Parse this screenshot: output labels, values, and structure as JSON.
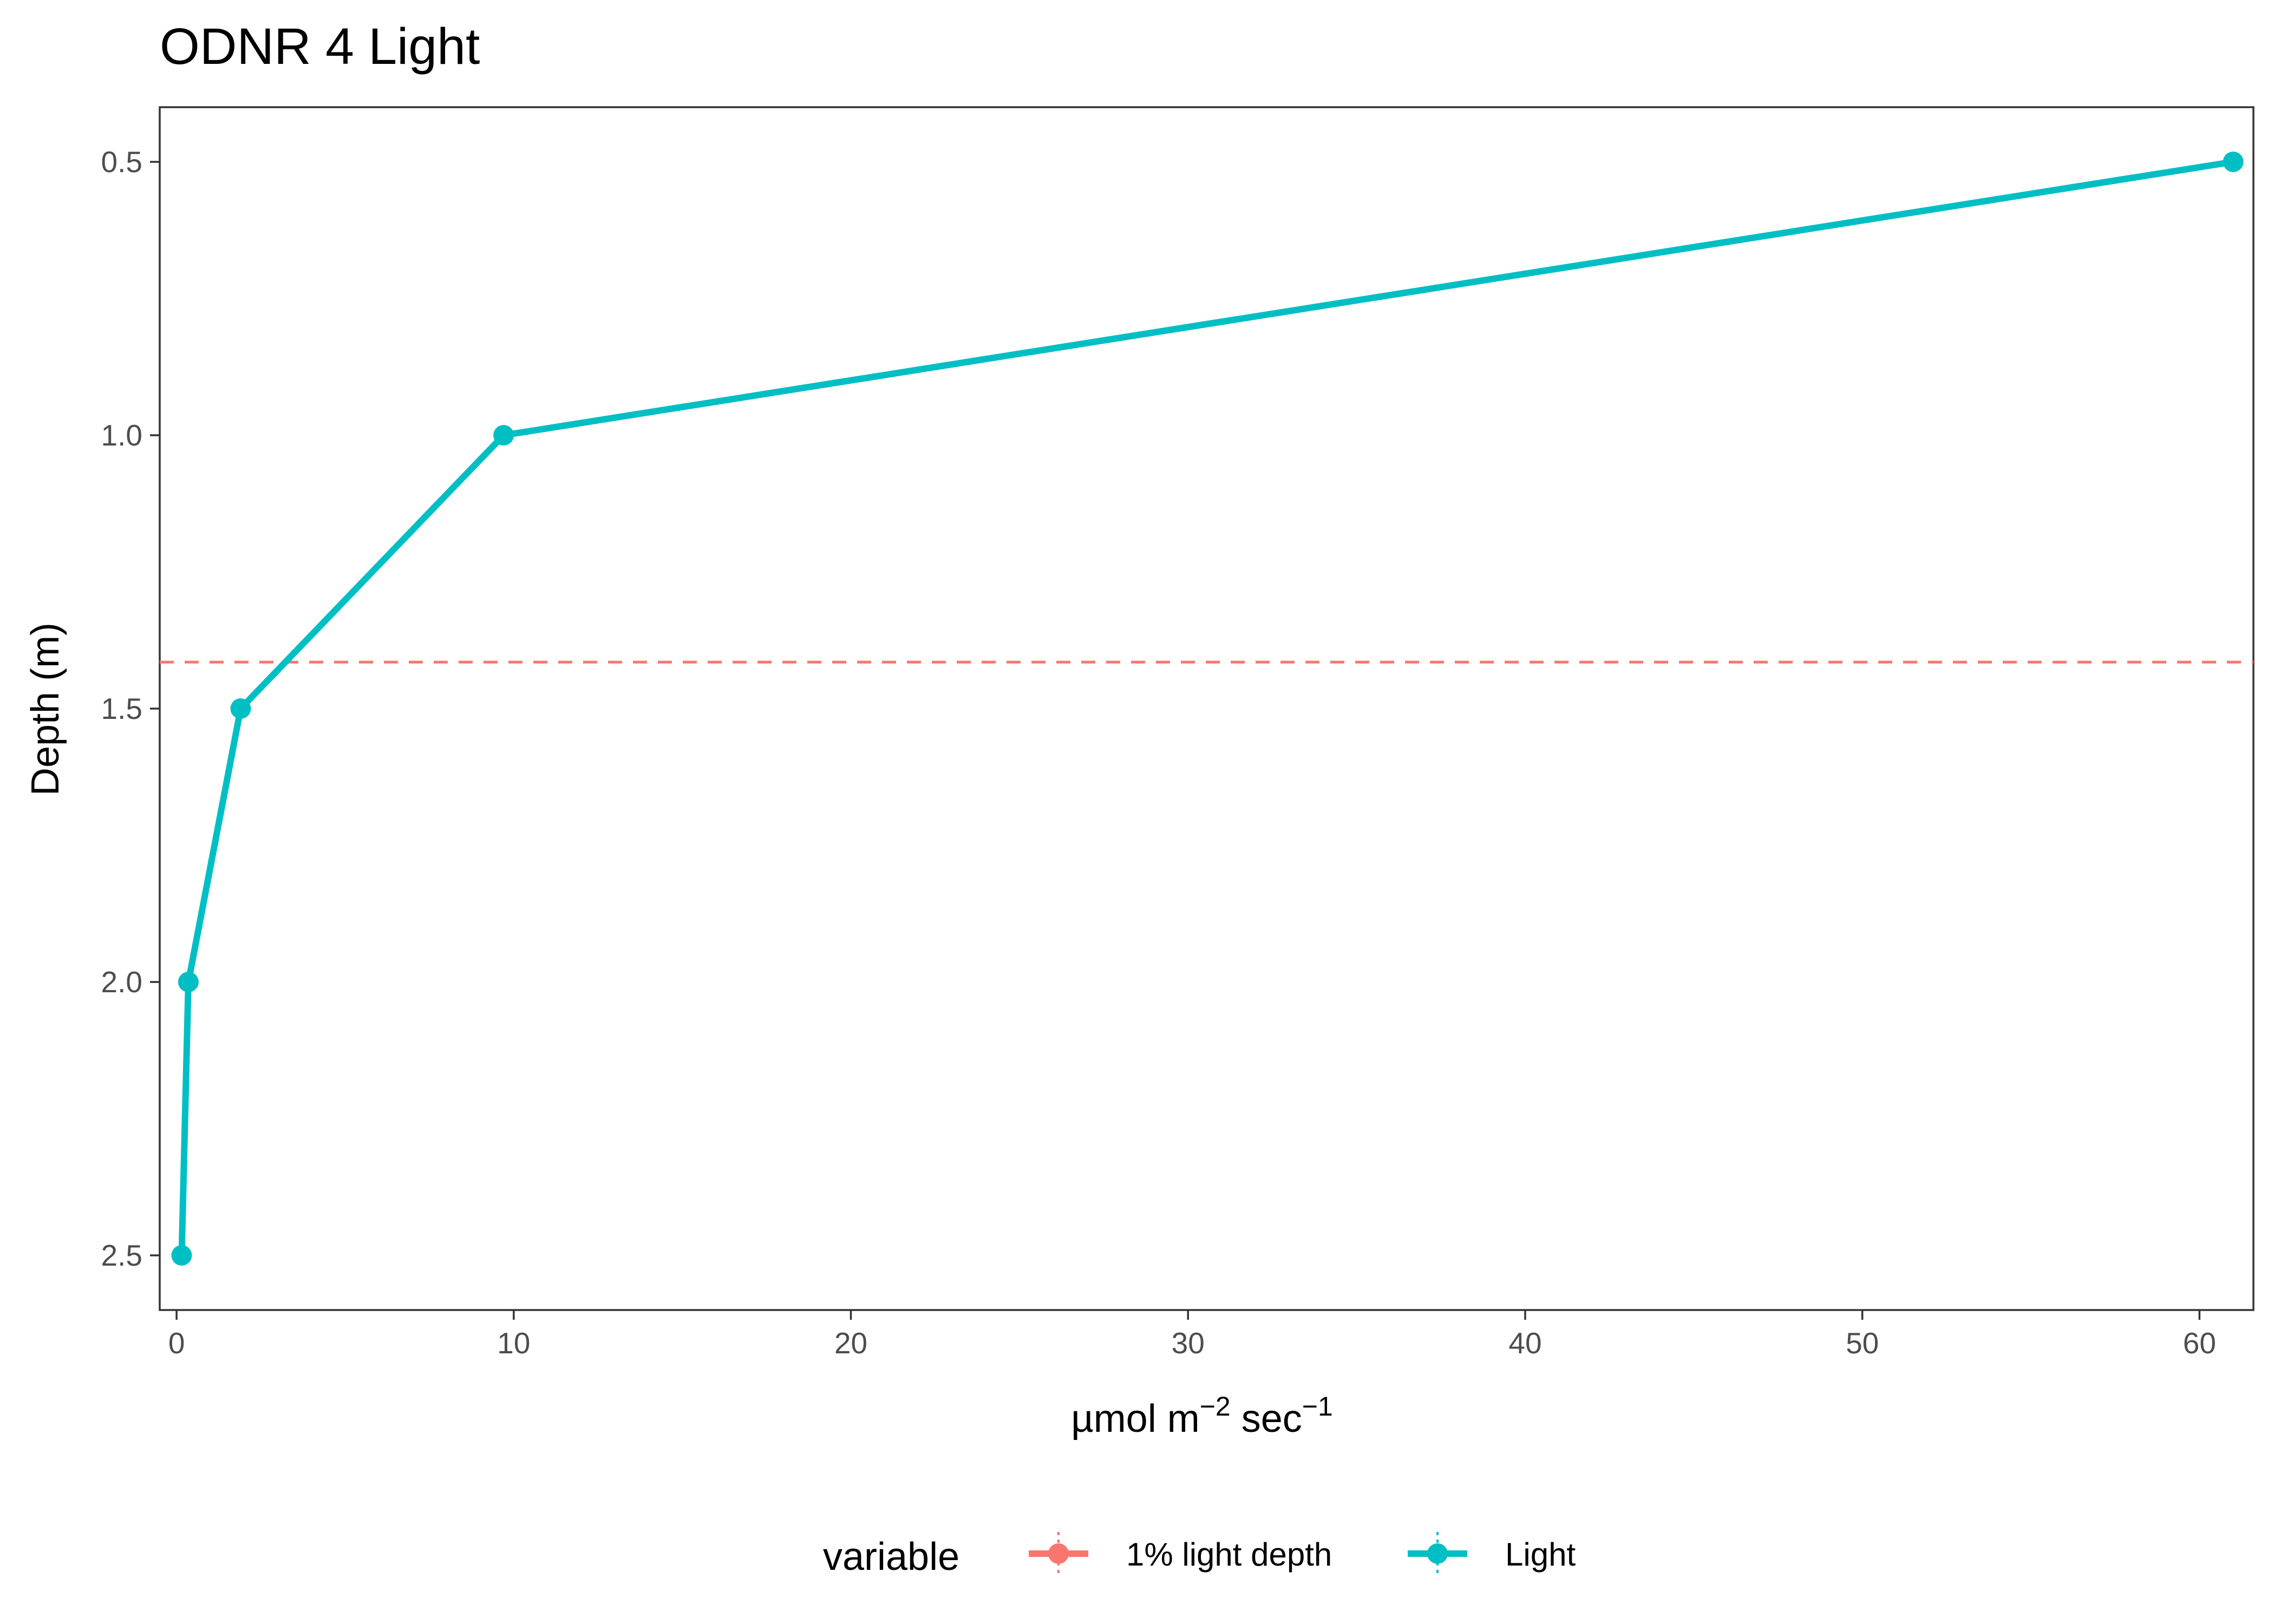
{
  "chart_data": {
    "type": "line",
    "title": "ODNR 4 Light",
    "xlabel": "µmol m⁻² sec⁻¹",
    "xlabel_parts": {
      "base": "µmol m",
      "exp1": "−2",
      "mid": " sec",
      "exp2": "−1"
    },
    "ylabel": "Depth (m)",
    "xlim": [
      -0.5,
      61.6
    ],
    "ylim": [
      0.4,
      2.6
    ],
    "y_reversed": true,
    "x_ticks": [
      "0",
      "10",
      "20",
      "30",
      "40",
      "50",
      "60"
    ],
    "x_tick_values": [
      0,
      10,
      20,
      30,
      40,
      50,
      60
    ],
    "y_ticks": [
      "0.5",
      "1.0",
      "1.5",
      "2.0",
      "2.5"
    ],
    "y_tick_values": [
      0.5,
      1.0,
      1.5,
      2.0,
      2.5
    ],
    "grid": false,
    "legend_position": "bottom",
    "legend_title": "variable",
    "series": [
      {
        "name": "Light",
        "color": "#00BFC4",
        "points": [
          {
            "x": 61.0,
            "y": 0.5
          },
          {
            "x": 9.7,
            "y": 1.0
          },
          {
            "x": 1.9,
            "y": 1.5
          },
          {
            "x": 0.35,
            "y": 2.0
          },
          {
            "x": 0.15,
            "y": 2.5
          }
        ]
      }
    ],
    "reference_lines": [
      {
        "name": "1% light depth",
        "color": "#F8766D",
        "style": "dashed",
        "y": 1.415
      }
    ],
    "legend_entries": [
      {
        "label": "1% light depth",
        "color": "#F8766D"
      },
      {
        "label": "Light",
        "color": "#00BFC4"
      }
    ]
  }
}
